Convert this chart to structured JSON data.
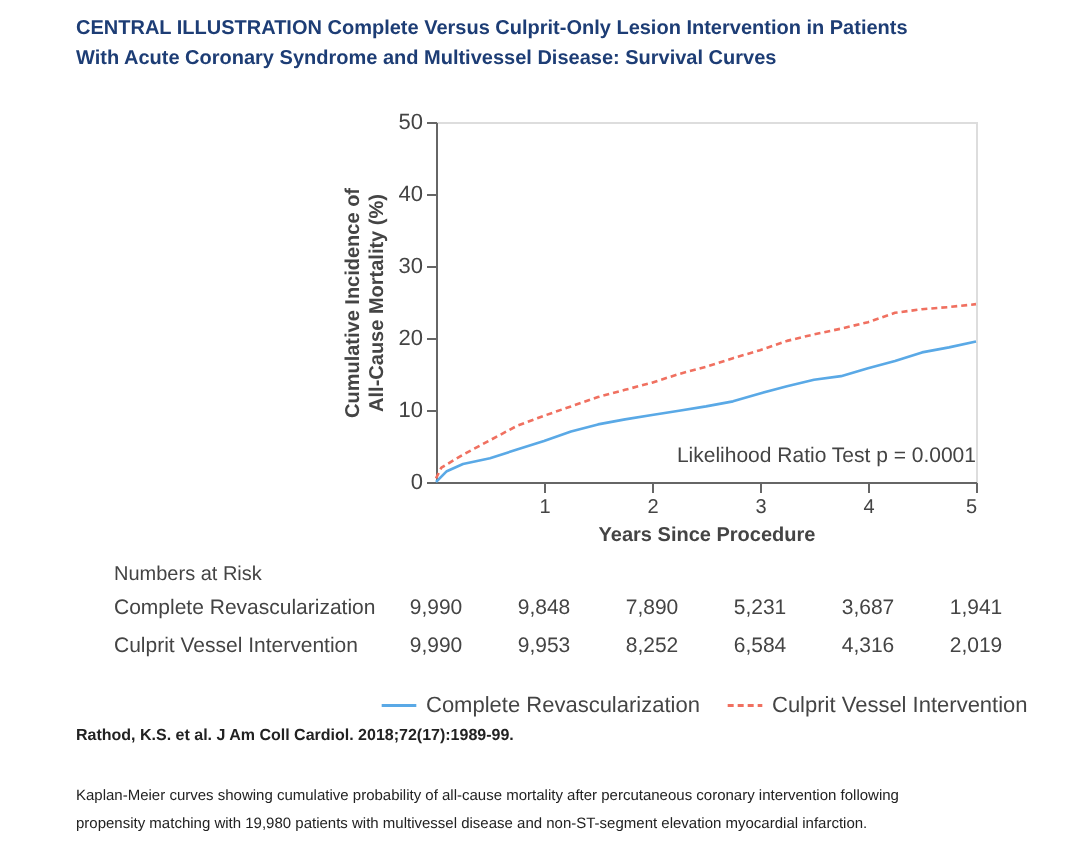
{
  "chart_data": {
    "type": "line",
    "title": "CENTRAL ILLUSTRATION Complete Versus Culprit-Only Lesion Intervention in Patients With Acute Coronary Syndrome and Multivessel Disease: Survival Curves",
    "xlabel": "Years Since Procedure",
    "ylabel": "Cumulative Incidence of All-Cause Mortality (%)",
    "xlim": [
      0,
      5
    ],
    "xticks": [
      1,
      2,
      3,
      4,
      5
    ],
    "ylim": [
      0,
      50
    ],
    "yticks": [
      0,
      10,
      20,
      30,
      40,
      50
    ],
    "grid": false,
    "legend": "bottom",
    "marker": "none",
    "series": [
      {
        "name": "Complete Revascularization",
        "color": "#5aa9e6",
        "line_style": "solid",
        "x": [
          0,
          0.1,
          0.25,
          0.5,
          0.75,
          1,
          1.25,
          1.5,
          1.75,
          2,
          2.25,
          2.5,
          2.75,
          3,
          3.25,
          3.5,
          3.75,
          4,
          4.25,
          4.5,
          4.75,
          5
        ],
        "values": [
          0,
          1.5,
          2.5,
          3.3,
          4.5,
          5.7,
          7,
          8,
          8.7,
          9.3,
          9.9,
          10.5,
          11.2,
          12.3,
          13.3,
          14.2,
          14.7,
          15.8,
          16.8,
          18,
          18.7,
          19.5
        ]
      },
      {
        "name": "Culprit Vessel Intervention",
        "color": "#f07060",
        "line_style": "dashed",
        "x": [
          0,
          0.05,
          0.25,
          0.5,
          0.75,
          1,
          1.25,
          1.5,
          1.75,
          2,
          2.25,
          2.5,
          2.75,
          3,
          3.25,
          3.5,
          3.75,
          4,
          4.25,
          4.5,
          4.75,
          5
        ],
        "values": [
          0.5,
          2,
          3.8,
          5.8,
          7.8,
          9.2,
          10.5,
          11.8,
          12.8,
          13.8,
          15,
          16,
          17.2,
          18.3,
          19.6,
          20.5,
          21.3,
          22.2,
          23.5,
          24,
          24.3,
          24.7
        ]
      }
    ],
    "annotations": [
      "Likelihood Ratio Test p = 0.0001",
      "Numbers at Risk",
      "Complete Revascularization",
      "9,990",
      "9,848",
      "7,890",
      "5,231",
      "3,687",
      "1,941",
      "Culprit Vessel Intervention",
      "9,990",
      "9,953",
      "8,252",
      "6,584",
      "4,316",
      "2,019",
      "Rathod, K.S. et al. J Am Coll Cardiol. 2018;72(17):1989-99.",
      "Kaplan-Meier curves showing cumulative probability of all-cause mortality after percutaneous coronary intervention following propensity matching with 19,980 patients with multivessel disease and non-ST-segment elevation myocardial infarction."
    ]
  }
}
